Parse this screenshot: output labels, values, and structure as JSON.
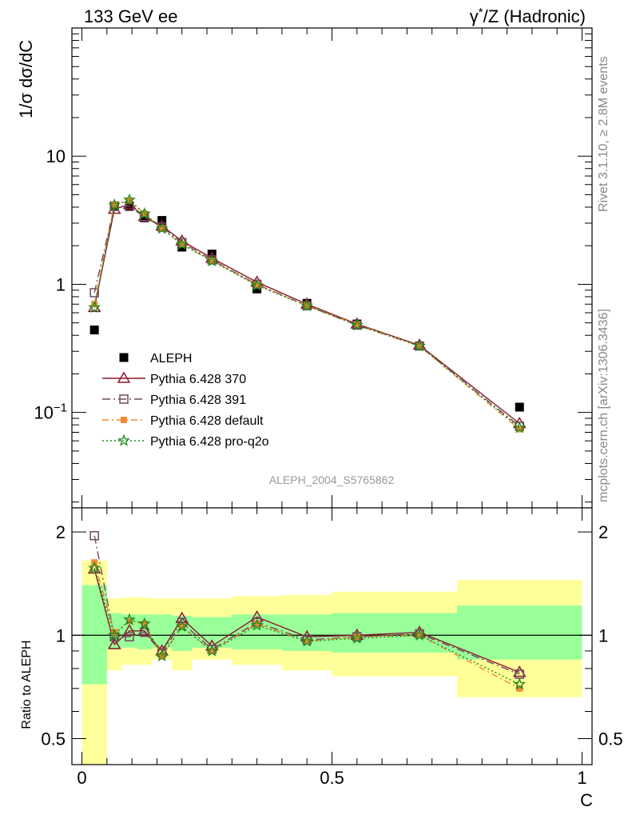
{
  "header": {
    "left_title": "133 GeV ee",
    "right_title_prefix": "γ",
    "right_title_sup": "*",
    "right_title_suffix": "/Z (Hadronic)"
  },
  "side_text": {
    "rivet": "Rivet 3.1.10, ≥ 2.8M events",
    "mcplots": "mcplots.cern.ch [arXiv:1306.3436]"
  },
  "watermark": "ALEPH_2004_S5765862",
  "colors": {
    "data": "#000000",
    "p370": "#8b1a2b",
    "p391": "#6e4a5e",
    "pdefault": "#f08a30",
    "pq2o": "#1a8a1a",
    "band_inner": "#99ff99",
    "band_outer": "#ffff99"
  },
  "chart_data": [
    {
      "type": "scatter",
      "panel": "main",
      "title": "133 GeV ee",
      "xlabel": "C",
      "ylabel": "1/σ dσ/dC",
      "log_y": true,
      "xlim": [
        -0.02,
        1.02
      ],
      "ylim": [
        0.018,
        100
      ],
      "y_ticks": [
        {
          "value": 0.1,
          "label": "10",
          "exp": "−1"
        },
        {
          "value": 1,
          "label": "1"
        },
        {
          "value": 10,
          "label": "10"
        }
      ],
      "x_bins": [
        [
          0.0,
          0.05
        ],
        [
          0.05,
          0.08
        ],
        [
          0.08,
          0.11
        ],
        [
          0.11,
          0.14
        ],
        [
          0.14,
          0.18
        ],
        [
          0.18,
          0.22
        ],
        [
          0.22,
          0.3
        ],
        [
          0.3,
          0.4
        ],
        [
          0.4,
          0.5
        ],
        [
          0.5,
          0.6
        ],
        [
          0.6,
          0.75
        ],
        [
          0.75,
          1.0
        ]
      ],
      "x": [
        0.025,
        0.065,
        0.095,
        0.125,
        0.16,
        0.2,
        0.26,
        0.35,
        0.45,
        0.55,
        0.675,
        0.875
      ],
      "legend_position": "lower-left",
      "series": [
        {
          "name": "ALEPH",
          "marker": "square",
          "style": "data",
          "values": [
            0.44,
            4.1,
            4.1,
            3.3,
            3.15,
            1.95,
            1.72,
            0.92,
            0.71,
            0.49,
            0.33,
            0.11
          ]
        },
        {
          "name": "Pythia 6.428 370",
          "marker": "triangle",
          "style": "solid",
          "values": [
            0.66,
            3.85,
            4.2,
            3.38,
            2.85,
            2.18,
            1.6,
            1.04,
            0.7,
            0.49,
            0.335,
            0.082
          ]
        },
        {
          "name": "Pythia 6.428 391",
          "marker": "square-open",
          "style": "dashdot",
          "values": [
            0.86,
            4.05,
            4.05,
            3.35,
            2.8,
            2.12,
            1.55,
            1.0,
            0.68,
            0.48,
            0.33,
            0.078
          ]
        },
        {
          "name": "Pythia 6.428 default",
          "marker": "square-filled-small",
          "style": "dashdot",
          "values": [
            0.7,
            4.2,
            4.5,
            3.55,
            2.72,
            2.05,
            1.53,
            0.99,
            0.68,
            0.485,
            0.33,
            0.074
          ]
        },
        {
          "name": "Pythia 6.428 pro-q2o",
          "marker": "star",
          "style": "dotted",
          "values": [
            0.66,
            4.15,
            4.55,
            3.55,
            2.72,
            2.05,
            1.52,
            0.98,
            0.68,
            0.48,
            0.33,
            0.076
          ]
        }
      ]
    },
    {
      "type": "scatter",
      "panel": "ratio",
      "xlabel": "C",
      "ylabel": "Ratio to ALEPH",
      "log_y": true,
      "xlim": [
        -0.02,
        1.02
      ],
      "ylim": [
        0.42,
        2.35
      ],
      "x_ticks": [
        {
          "value": 0,
          "label": "0"
        },
        {
          "value": 0.5,
          "label": "0.5"
        },
        {
          "value": 1,
          "label": "1"
        }
      ],
      "y_ticks": [
        {
          "value": 0.5,
          "label": "0.5"
        },
        {
          "value": 1,
          "label": "1"
        },
        {
          "value": 2,
          "label": "2"
        }
      ],
      "bands": [
        {
          "x": [
            0.0,
            0.05
          ],
          "inner": [
            0.72,
            1.4
          ],
          "outer": [
            0.4,
            1.65
          ]
        },
        {
          "x": [
            0.05,
            0.08
          ],
          "inner": [
            0.91,
            1.16
          ],
          "outer": [
            0.79,
            1.28
          ]
        },
        {
          "x": [
            0.08,
            0.11
          ],
          "inner": [
            0.92,
            1.15
          ],
          "outer": [
            0.82,
            1.29
          ]
        },
        {
          "x": [
            0.11,
            0.14
          ],
          "inner": [
            0.91,
            1.15
          ],
          "outer": [
            0.82,
            1.29
          ]
        },
        {
          "x": [
            0.14,
            0.18
          ],
          "inner": [
            0.92,
            1.15
          ],
          "outer": [
            0.85,
            1.28
          ]
        },
        {
          "x": [
            0.18,
            0.22
          ],
          "inner": [
            0.9,
            1.14
          ],
          "outer": [
            0.79,
            1.28
          ]
        },
        {
          "x": [
            0.22,
            0.3
          ],
          "inner": [
            0.92,
            1.13
          ],
          "outer": [
            0.85,
            1.28
          ]
        },
        {
          "x": [
            0.3,
            0.4
          ],
          "inner": [
            0.91,
            1.15
          ],
          "outer": [
            0.82,
            1.3
          ]
        },
        {
          "x": [
            0.4,
            0.5
          ],
          "inner": [
            0.9,
            1.15
          ],
          "outer": [
            0.79,
            1.31
          ]
        },
        {
          "x": [
            0.5,
            0.6
          ],
          "inner": [
            0.89,
            1.16
          ],
          "outer": [
            0.76,
            1.34
          ]
        },
        {
          "x": [
            0.6,
            0.75
          ],
          "inner": [
            0.89,
            1.16
          ],
          "outer": [
            0.76,
            1.34
          ]
        },
        {
          "x": [
            0.75,
            1.0
          ],
          "inner": [
            0.85,
            1.22
          ],
          "outer": [
            0.66,
            1.45
          ]
        }
      ],
      "series": [
        {
          "name": "Pythia 6.428 370",
          "marker": "triangle",
          "style": "solid",
          "values": [
            1.56,
            0.94,
            1.03,
            1.03,
            0.9,
            1.12,
            0.93,
            1.13,
            0.99,
            1.0,
            1.02,
            0.78
          ]
        },
        {
          "name": "Pythia 6.428 391",
          "marker": "square-open",
          "style": "dashdot",
          "values": [
            1.95,
            0.99,
            0.99,
            1.02,
            0.89,
            1.09,
            0.91,
            1.09,
            0.97,
            0.99,
            1.01,
            0.77
          ]
        },
        {
          "name": "Pythia 6.428 default",
          "marker": "square-filled-small",
          "style": "dashdot",
          "values": [
            1.63,
            1.02,
            1.1,
            1.08,
            0.87,
            1.06,
            0.9,
            1.08,
            0.96,
            0.99,
            1.0,
            0.7
          ]
        },
        {
          "name": "Pythia 6.428 pro-q2o",
          "marker": "star",
          "style": "dotted",
          "values": [
            1.57,
            1.0,
            1.11,
            1.08,
            0.87,
            1.06,
            0.9,
            1.07,
            0.96,
            0.98,
            1.0,
            0.72
          ]
        }
      ]
    }
  ]
}
